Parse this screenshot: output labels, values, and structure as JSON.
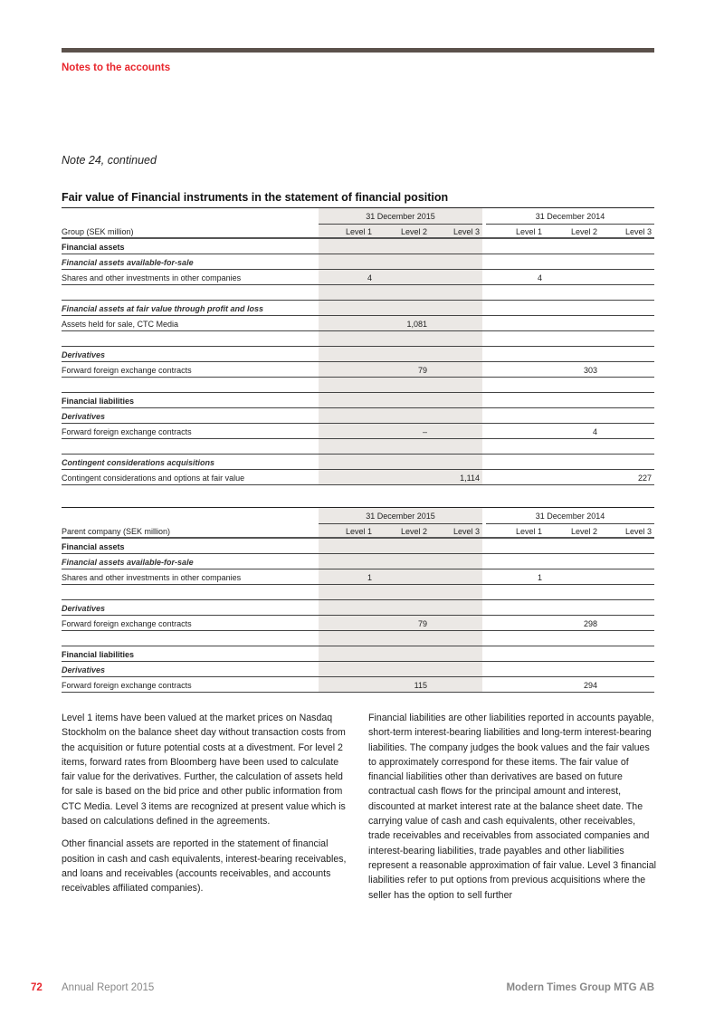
{
  "header": {
    "section": "Notes to the accounts",
    "note": "Note 24, continued"
  },
  "table_title": "Fair value of Financial instruments in the statement of financial position",
  "columns": {
    "period_2015": "31 December 2015",
    "period_2014": "31 December 2014",
    "levels": [
      "Level 1",
      "Level 2",
      "Level 3",
      "Level 1",
      "Level 2",
      "Level 3"
    ]
  },
  "colors": {
    "accent": "#e8262d",
    "rule": "#5b514b",
    "shade": "#ebe8e5"
  },
  "group_table": {
    "heading": "Group (SEK million)",
    "rows": [
      {
        "type": "b",
        "label": "Financial assets",
        "values": [
          "",
          "",
          "",
          "",
          "",
          ""
        ]
      },
      {
        "type": "i",
        "label": "Financial assets available-for-sale",
        "values": [
          "",
          "",
          "",
          "",
          "",
          ""
        ]
      },
      {
        "type": "d",
        "label": "Shares and other investments in other companies",
        "values": [
          "4",
          "",
          "",
          "4",
          "",
          ""
        ]
      },
      {
        "type": "s",
        "label": "",
        "values": [
          "",
          "",
          "",
          "",
          "",
          ""
        ]
      },
      {
        "type": "i",
        "label": "Financial assets at fair value through profit and loss",
        "values": [
          "",
          "",
          "",
          "",
          "",
          ""
        ]
      },
      {
        "type": "d",
        "label": "Assets held for sale, CTC Media",
        "values": [
          "",
          "1,081",
          "",
          "",
          "",
          ""
        ]
      },
      {
        "type": "s",
        "label": "",
        "values": [
          "",
          "",
          "",
          "",
          "",
          ""
        ]
      },
      {
        "type": "i",
        "label": "Derivatives",
        "values": [
          "",
          "",
          "",
          "",
          "",
          ""
        ]
      },
      {
        "type": "d",
        "label": "Forward foreign exchange contracts",
        "values": [
          "",
          "79",
          "",
          "",
          "303",
          ""
        ]
      },
      {
        "type": "s",
        "label": "",
        "values": [
          "",
          "",
          "",
          "",
          "",
          ""
        ]
      },
      {
        "type": "b",
        "label": "Financial liabilities",
        "values": [
          "",
          "",
          "",
          "",
          "",
          ""
        ]
      },
      {
        "type": "i",
        "label": "Derivatives",
        "values": [
          "",
          "",
          "",
          "",
          "",
          ""
        ]
      },
      {
        "type": "d",
        "label": "Forward foreign exchange contracts",
        "values": [
          "",
          "–",
          "",
          "",
          "4",
          ""
        ]
      },
      {
        "type": "s",
        "label": "",
        "values": [
          "",
          "",
          "",
          "",
          "",
          ""
        ]
      },
      {
        "type": "i",
        "label": "Contingent considerations acquisitions",
        "values": [
          "",
          "",
          "",
          "",
          "",
          ""
        ]
      },
      {
        "type": "d",
        "label": "Contingent considerations and options at fair value",
        "values": [
          "",
          "",
          "1,114",
          "",
          "",
          "227"
        ]
      }
    ]
  },
  "parent_table": {
    "heading": "Parent company (SEK million)",
    "rows": [
      {
        "type": "b",
        "label": "Financial assets",
        "values": [
          "",
          "",
          "",
          "",
          "",
          ""
        ]
      },
      {
        "type": "i",
        "label": "Financial assets available-for-sale",
        "values": [
          "",
          "",
          "",
          "",
          "",
          ""
        ]
      },
      {
        "type": "d",
        "label": "Shares and other investments in other companies",
        "values": [
          "1",
          "",
          "",
          "1",
          "",
          ""
        ]
      },
      {
        "type": "s",
        "label": "",
        "values": [
          "",
          "",
          "",
          "",
          "",
          ""
        ]
      },
      {
        "type": "i",
        "label": "Derivatives",
        "values": [
          "",
          "",
          "",
          "",
          "",
          ""
        ]
      },
      {
        "type": "d",
        "label": "Forward foreign exchange contracts",
        "values": [
          "",
          "79",
          "",
          "",
          "298",
          ""
        ]
      },
      {
        "type": "s",
        "label": "",
        "values": [
          "",
          "",
          "",
          "",
          "",
          ""
        ]
      },
      {
        "type": "b",
        "label": "Financial liabilities",
        "values": [
          "",
          "",
          "",
          "",
          "",
          ""
        ]
      },
      {
        "type": "i",
        "label": "Derivatives",
        "values": [
          "",
          "",
          "",
          "",
          "",
          ""
        ]
      },
      {
        "type": "d",
        "label": "Forward foreign exchange contracts",
        "values": [
          "",
          "115",
          "",
          "",
          "294",
          ""
        ]
      }
    ]
  },
  "body": {
    "left": [
      "Level 1 items have been valued at the market prices on Nasdaq Stockholm on the balance sheet day without transaction costs from the acquisition or future potential costs at a divestment. For level 2 items, forward rates from Bloomberg have been used to calculate fair value for the derivatives. Further, the calculation of assets held for sale is based on the bid price and other public information from CTC Media. Level 3 items are recognized at present value which is based on calculations defined in the agreements.",
      "Other financial assets are reported in the statement of financial position in cash and cash equivalents, interest-bearing receivables, and loans and receivables (accounts receivables, and accounts receivables affiliated companies)."
    ],
    "right": [
      "Financial liabilities are other liabilities reported in accounts payable, short-term interest-bearing liabilities and long-term interest-bearing liabilities. The company judges the book values and the fair values to approximately correspond for these items. The fair value of financial liabilities other than derivatives are based on future contractual cash flows for the principal amount and interest, discounted at market interest rate at the balance sheet date. The carrying value of cash and cash equivalents, other receivables, trade receivables and receivables from associated companies and interest-bearing liabilities, trade payables and other liabilities represent a reasonable approximation of fair value. Level 3 financial liabilities refer to put options from previous acquisitions where the seller has the option to sell further"
    ]
  },
  "footer": {
    "page": "72",
    "report": "Annual Report 2015",
    "company": "Modern Times Group MTG AB"
  }
}
